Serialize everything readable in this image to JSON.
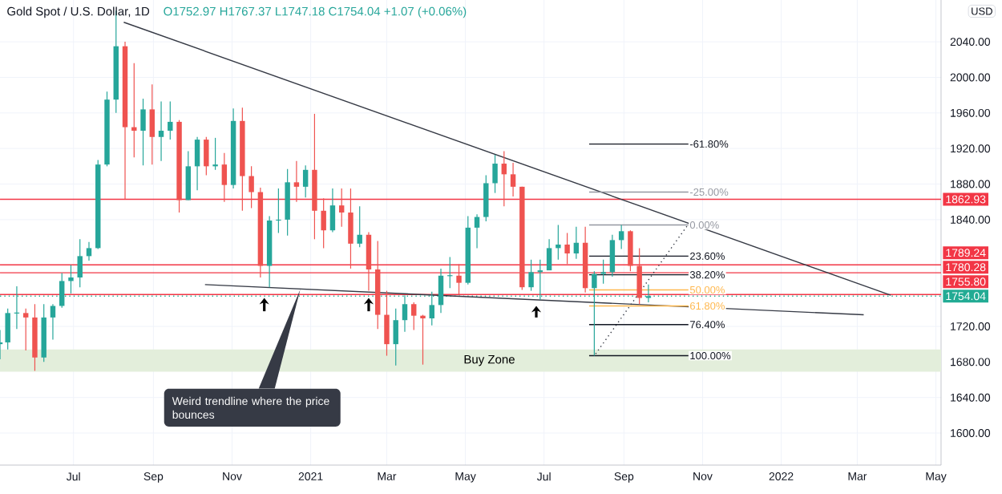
{
  "chart_data": {
    "type": "candlestick",
    "title": "Gold Spot / U.S. Dollar, 1D",
    "subtitle": "O1752.97 H1767.37 L1747.18 C1754.04 +1.07 (+0.06%)",
    "x": [
      "2020-05-05",
      "2020-05-11",
      "2020-05-18",
      "2020-05-25",
      "2020-06-01",
      "2020-06-08",
      "2020-06-15",
      "2020-06-22",
      "2020-06-29",
      "2020-07-06",
      "2020-07-13",
      "2020-07-20",
      "2020-07-27",
      "2020-08-03",
      "2020-08-10",
      "2020-08-17",
      "2020-08-24",
      "2020-08-31",
      "2020-09-07",
      "2020-09-14",
      "2020-09-21",
      "2020-09-28",
      "2020-10-05",
      "2020-10-12",
      "2020-10-19",
      "2020-10-26",
      "2020-11-02",
      "2020-11-09",
      "2020-11-16",
      "2020-11-23",
      "2020-11-30",
      "2020-12-07",
      "2020-12-14",
      "2020-12-21",
      "2020-12-28",
      "2021-01-04",
      "2021-01-11",
      "2021-01-18",
      "2021-01-25",
      "2021-02-01",
      "2021-02-08",
      "2021-02-15",
      "2021-02-22",
      "2021-03-01",
      "2021-03-08",
      "2021-03-15",
      "2021-03-22",
      "2021-03-29",
      "2021-04-05",
      "2021-04-12",
      "2021-04-19",
      "2021-04-26",
      "2021-05-03",
      "2021-05-10",
      "2021-05-17",
      "2021-05-24",
      "2021-05-31",
      "2021-06-07",
      "2021-06-14",
      "2021-06-21",
      "2021-06-28",
      "2021-07-05",
      "2021-07-12",
      "2021-07-19",
      "2021-07-26",
      "2021-08-02",
      "2021-08-09",
      "2021-08-16",
      "2021-08-23",
      "2021-08-30",
      "2021-09-06",
      "2021-09-13",
      "2021-09-20"
    ],
    "ohlc": [
      [
        1700,
        1716,
        1683,
        1702
      ],
      [
        1702,
        1740,
        1694,
        1735
      ],
      [
        1735,
        1765,
        1717,
        1735
      ],
      [
        1735,
        1740,
        1693,
        1730
      ],
      [
        1730,
        1745,
        1670,
        1685
      ],
      [
        1685,
        1745,
        1680,
        1730
      ],
      [
        1730,
        1745,
        1705,
        1743
      ],
      [
        1743,
        1780,
        1741,
        1771
      ],
      [
        1771,
        1789,
        1757,
        1775
      ],
      [
        1775,
        1818,
        1764,
        1799
      ],
      [
        1799,
        1815,
        1794,
        1808
      ],
      [
        1808,
        1907,
        1807,
        1902
      ],
      [
        1902,
        1984,
        1900,
        1975
      ],
      [
        1975,
        2075,
        1960,
        2035
      ],
      [
        2035,
        2040,
        1863,
        1944
      ],
      [
        1944,
        2016,
        1910,
        1940
      ],
      [
        1940,
        1976,
        1901,
        1964
      ],
      [
        1964,
        1992,
        1902,
        1933
      ],
      [
        1933,
        1973,
        1906,
        1940
      ],
      [
        1940,
        1973,
        1930,
        1950
      ],
      [
        1950,
        1952,
        1848,
        1862
      ],
      [
        1862,
        1917,
        1862,
        1900
      ],
      [
        1900,
        1933,
        1873,
        1930
      ],
      [
        1930,
        1933,
        1890,
        1900
      ],
      [
        1900,
        1932,
        1896,
        1902
      ],
      [
        1902,
        1915,
        1860,
        1879
      ],
      [
        1879,
        1965,
        1875,
        1951
      ],
      [
        1951,
        1966,
        1850,
        1889
      ],
      [
        1889,
        1900,
        1853,
        1871
      ],
      [
        1871,
        1876,
        1775,
        1788
      ],
      [
        1788,
        1844,
        1764,
        1839
      ],
      [
        1839,
        1875,
        1825,
        1840
      ],
      [
        1840,
        1897,
        1822,
        1882
      ],
      [
        1882,
        1906,
        1860,
        1877
      ],
      [
        1877,
        1901,
        1865,
        1896
      ],
      [
        1896,
        1959,
        1818,
        1850
      ],
      [
        1850,
        1864,
        1808,
        1828
      ],
      [
        1828,
        1875,
        1826,
        1856
      ],
      [
        1856,
        1875,
        1832,
        1848
      ],
      [
        1848,
        1875,
        1785,
        1813
      ],
      [
        1813,
        1855,
        1809,
        1823
      ],
      [
        1823,
        1826,
        1760,
        1784
      ],
      [
        1784,
        1816,
        1717,
        1733
      ],
      [
        1733,
        1760,
        1687,
        1700
      ],
      [
        1700,
        1740,
        1676,
        1727
      ],
      [
        1727,
        1755,
        1714,
        1745
      ],
      [
        1745,
        1747,
        1716,
        1732
      ],
      [
        1732,
        1733,
        1677,
        1729
      ],
      [
        1729,
        1759,
        1721,
        1744
      ],
      [
        1744,
        1785,
        1735,
        1777
      ],
      [
        1777,
        1798,
        1763,
        1777
      ],
      [
        1777,
        1790,
        1756,
        1769
      ],
      [
        1769,
        1844,
        1767,
        1831
      ],
      [
        1831,
        1846,
        1808,
        1843
      ],
      [
        1843,
        1890,
        1838,
        1881
      ],
      [
        1881,
        1913,
        1870,
        1903
      ],
      [
        1903,
        1917,
        1855,
        1891
      ],
      [
        1891,
        1904,
        1866,
        1877
      ],
      [
        1877,
        1877,
        1761,
        1764
      ],
      [
        1764,
        1795,
        1760,
        1781
      ],
      [
        1781,
        1795,
        1750,
        1783
      ],
      [
        1783,
        1818,
        1783,
        1808
      ],
      [
        1808,
        1834,
        1795,
        1812
      ],
      [
        1812,
        1825,
        1790,
        1802
      ],
      [
        1802,
        1832,
        1796,
        1814
      ],
      [
        1814,
        1832,
        1758,
        1763
      ],
      [
        1763,
        1782,
        1687,
        1779
      ],
      [
        1779,
        1795,
        1768,
        1781
      ],
      [
        1781,
        1823,
        1776,
        1817
      ],
      [
        1817,
        1834,
        1807,
        1827
      ],
      [
        1827,
        1828,
        1782,
        1788
      ],
      [
        1788,
        1808,
        1745,
        1752
      ],
      [
        1752,
        1767,
        1747,
        1754
      ]
    ],
    "series": [
      {
        "type": "line",
        "color": "#363a45",
        "x": [
          "2020-08-09",
          "2022-03-27"
        ],
        "values": [
          2062,
          1755
        ]
      },
      {
        "type": "line",
        "color": "#363a45",
        "x": [
          "2020-10-11",
          "2022-03-06"
        ],
        "values": [
          1767,
          1733
        ]
      },
      {
        "type": "line",
        "color": "#363a45",
        "line_style": "dotted",
        "x": [
          "2021-08-10",
          "2021-10-21"
        ],
        "values": [
          1689,
          1835
        ]
      },
      {
        "type": "line",
        "name": "-61.80%",
        "color": "#131722",
        "x": [
          "2021-08-05",
          "2021-10-21"
        ],
        "values": [
          1925,
          1925
        ]
      },
      {
        "type": "line",
        "name": "-25.00%",
        "color": "#9598a1",
        "x": [
          "2021-08-05",
          "2021-10-21"
        ],
        "values": [
          1871,
          1871
        ]
      },
      {
        "type": "line",
        "name": "0.00%",
        "color": "#9598a1",
        "x": [
          "2021-08-05",
          "2021-10-21"
        ],
        "values": [
          1834,
          1834
        ]
      },
      {
        "type": "line",
        "name": "23.60%",
        "color": "#131722",
        "x": [
          "2021-08-05",
          "2021-10-21"
        ],
        "values": [
          1799,
          1799
        ]
      },
      {
        "type": "line",
        "name": "38.20%",
        "color": "#131722",
        "x": [
          "2021-08-05",
          "2021-10-21"
        ],
        "values": [
          1778,
          1778
        ]
      },
      {
        "type": "line",
        "name": "50.00%",
        "color": "#ffb74d",
        "x": [
          "2021-08-05",
          "2021-10-21"
        ],
        "values": [
          1761,
          1761
        ]
      },
      {
        "type": "line",
        "name": "61.80%",
        "color": "#ffb74d",
        "x": [
          "2021-08-05",
          "2021-10-21"
        ],
        "values": [
          1743,
          1743
        ]
      },
      {
        "type": "line",
        "name": "76.40%",
        "color": "#131722",
        "x": [
          "2021-08-05",
          "2021-10-21"
        ],
        "values": [
          1722,
          1722
        ]
      },
      {
        "type": "line",
        "name": "100.00%",
        "color": "#131722",
        "x": [
          "2021-08-05",
          "2021-10-21"
        ],
        "values": [
          1687,
          1687
        ]
      }
    ],
    "ref_lines": [
      {
        "axis": "y",
        "value": 1862.93,
        "label": "1862.93",
        "color": "#f23645"
      },
      {
        "axis": "y",
        "value": 1789.24,
        "label": "1789.24",
        "color": "#f23645"
      },
      {
        "axis": "y",
        "value": 1780.28,
        "label": "1780.28",
        "color": "#f23645"
      },
      {
        "axis": "y",
        "value": 1755.8,
        "label": "1755.80",
        "color": "#f23645"
      },
      {
        "axis": "y",
        "value": 1754.04,
        "label": "1754.04",
        "color": "#22ab94",
        "line_style": "dotted"
      }
    ],
    "bands": [
      {
        "axis": "y",
        "from": 1669,
        "to": 1694,
        "label": "Buy Zone",
        "color": "#e3eedb"
      }
    ],
    "annotations": [
      {
        "text": "Weird trendline where the price bounces",
        "x": "2020-12-24",
        "y": 1762
      },
      "USD"
    ],
    "xlim": [
      "2020-05-05",
      "2022-05-05"
    ],
    "ylim": [
      1564,
      2087
    ],
    "xticks": [
      {
        "value": "2020-07-01",
        "label": "Jul"
      },
      {
        "value": "2020-09-01",
        "label": "Sep"
      },
      {
        "value": "2020-11-01",
        "label": "Nov"
      },
      {
        "value": "2021-01-01",
        "label": "2021"
      },
      {
        "value": "2021-03-01",
        "label": "Mar"
      },
      {
        "value": "2021-05-01",
        "label": "May"
      },
      {
        "value": "2021-07-01",
        "label": "Jul"
      },
      {
        "value": "2021-09-01",
        "label": "Sep"
      },
      {
        "value": "2021-11-01",
        "label": "Nov"
      },
      {
        "value": "2022-01-01",
        "label": "2022"
      },
      {
        "value": "2022-03-01",
        "label": "Mar"
      },
      {
        "value": "2022-05-01",
        "label": "May"
      }
    ],
    "yticks": [
      {
        "value": 1600,
        "label": "1600.00"
      },
      {
        "value": 1640,
        "label": "1640.00"
      },
      {
        "value": 1680,
        "label": "1680.00"
      },
      {
        "value": 1720,
        "label": "1720.00"
      },
      {
        "value": 1840,
        "label": "1840.00"
      },
      {
        "value": 1880,
        "label": "1880.00"
      },
      {
        "value": 1920,
        "label": "1920.00"
      },
      {
        "value": 1960,
        "label": "1960.00"
      },
      {
        "value": 2000,
        "label": "2000.00"
      },
      {
        "value": 2040,
        "label": "2040.00"
      }
    ],
    "grid": true
  }
}
